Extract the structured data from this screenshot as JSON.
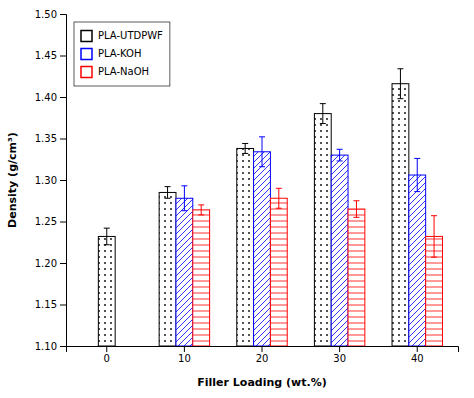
{
  "chart_data": {
    "type": "bar",
    "categories": [
      "0",
      "10",
      "20",
      "30",
      "40"
    ],
    "series": [
      {
        "name": "PLA-UTDPWF",
        "color": "#000000",
        "values": [
          1.232,
          1.285,
          1.338,
          1.38,
          1.416
        ],
        "errors": [
          0.01,
          0.007,
          0.006,
          0.012,
          0.018
        ]
      },
      {
        "name": "PLA-KOH",
        "color": "#0000ff",
        "values": [
          null,
          1.278,
          1.334,
          1.33,
          1.306
        ],
        "errors": [
          null,
          0.015,
          0.018,
          0.007,
          0.02
        ]
      },
      {
        "name": "PLA-NaOH",
        "color": "#ff0000",
        "values": [
          null,
          1.264,
          1.278,
          1.265,
          1.232
        ],
        "errors": [
          null,
          0.006,
          0.012,
          0.01,
          0.025
        ]
      }
    ],
    "xlabel": "Filler Loading (wt.%)",
    "ylabel": "Density (g/cm³)",
    "ylim": [
      1.1,
      1.5
    ],
    "yticks": [
      {
        "value": 1.1,
        "label": "1.10"
      },
      1.15,
      {
        "value": 1.2,
        "label": "1.20"
      },
      1.25,
      {
        "value": 1.3,
        "label": "1.30"
      },
      1.35,
      {
        "value": 1.4,
        "label": "1.40"
      },
      1.45,
      {
        "value": 1.5,
        "label": "1.50"
      }
    ],
    "grid": false,
    "legend": "upper left"
  }
}
